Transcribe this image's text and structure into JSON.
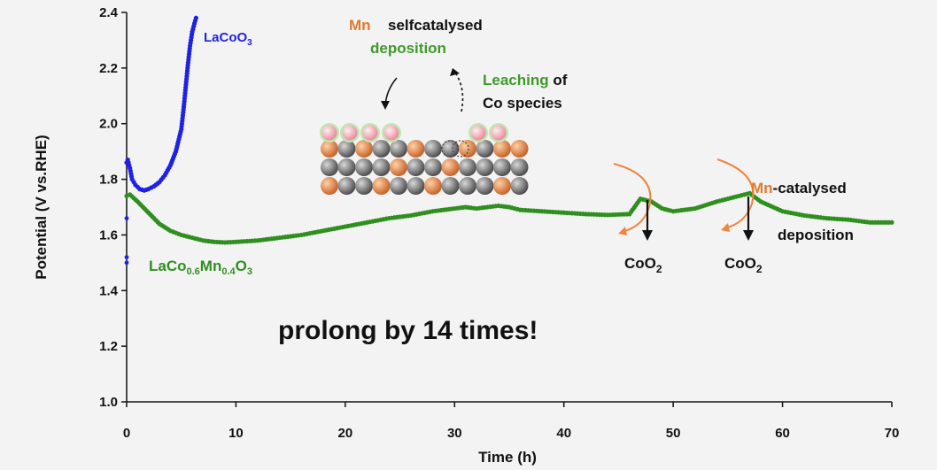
{
  "colors": {
    "lacoo3": "#1f22e6",
    "lacomn": "#2f8f1f",
    "mn": "#e07a2f",
    "green_text": "#3e9a2a",
    "black": "#111111",
    "arrow_orange": "#f0843c"
  },
  "chart_data": {
    "type": "scatter",
    "xlabel": "Time (h)",
    "ylabel": "Potential (V vs.RHE)",
    "xlim": [
      0,
      70
    ],
    "ylim": [
      1.0,
      2.4
    ],
    "xticks": [
      "0",
      "10",
      "20",
      "30",
      "40",
      "50",
      "60",
      "70"
    ],
    "yticks": [
      "1.0",
      "1.2",
      "1.4",
      "1.6",
      "1.8",
      "2.0",
      "2.2",
      "2.4"
    ],
    "grid": false,
    "series": [
      {
        "name_main": "LaCoO",
        "name_sub": "3",
        "color_key": "lacoo3",
        "x": [
          0.0,
          0.1,
          0.3,
          0.5,
          0.8,
          1.2,
          1.6,
          2.0,
          2.5,
          3.0,
          3.5,
          4.0,
          4.5,
          5.0,
          5.2,
          5.4,
          5.6,
          5.8,
          6.0,
          6.2,
          6.35
        ],
        "y": [
          1.86,
          1.87,
          1.84,
          1.8,
          1.78,
          1.765,
          1.76,
          1.765,
          1.775,
          1.79,
          1.815,
          1.85,
          1.9,
          1.98,
          2.05,
          2.13,
          2.21,
          2.28,
          2.33,
          2.36,
          2.38
        ]
      },
      {
        "name_main": "LaCo",
        "name_sub1": "0.6",
        "name_mid": "Mn",
        "name_sub2": "0.4",
        "name_end": "O",
        "name_sub3": "3",
        "color_key": "lacomn",
        "x": [
          0,
          0.3,
          1,
          2,
          3,
          4,
          5,
          6,
          7,
          8,
          9,
          10,
          12,
          14,
          16,
          18,
          20,
          22,
          24,
          26,
          28,
          30,
          31,
          32,
          33,
          34,
          35,
          36,
          38,
          40,
          42,
          44,
          46,
          47,
          48,
          49,
          50,
          52,
          54,
          55,
          56,
          57,
          58,
          60,
          62,
          64,
          66,
          68,
          70
        ],
        "y": [
          1.74,
          1.745,
          1.72,
          1.68,
          1.64,
          1.615,
          1.6,
          1.59,
          1.58,
          1.575,
          1.573,
          1.575,
          1.58,
          1.59,
          1.6,
          1.615,
          1.63,
          1.645,
          1.66,
          1.67,
          1.685,
          1.695,
          1.7,
          1.695,
          1.7,
          1.705,
          1.7,
          1.69,
          1.685,
          1.68,
          1.675,
          1.672,
          1.675,
          1.73,
          1.72,
          1.695,
          1.685,
          1.695,
          1.72,
          1.73,
          1.74,
          1.75,
          1.72,
          1.685,
          1.67,
          1.66,
          1.655,
          1.645,
          1.645
        ]
      }
    ],
    "annotations": {
      "mn_label": "Mn",
      "selfcatalysed": "selfcatalysed",
      "deposition1": "deposition",
      "leaching": "Leaching",
      "of": " of",
      "co_species": "Co species",
      "coo2_a_main": "CoO",
      "coo2_a_sub": "2",
      "coo2_b_main": "CoO",
      "coo2_b_sub": "2",
      "mn_cat_mn": "Mn",
      "mn_cat_rest": "-catalysed",
      "deposition2": "deposition",
      "prolong": "prolong by 14 times!"
    }
  }
}
